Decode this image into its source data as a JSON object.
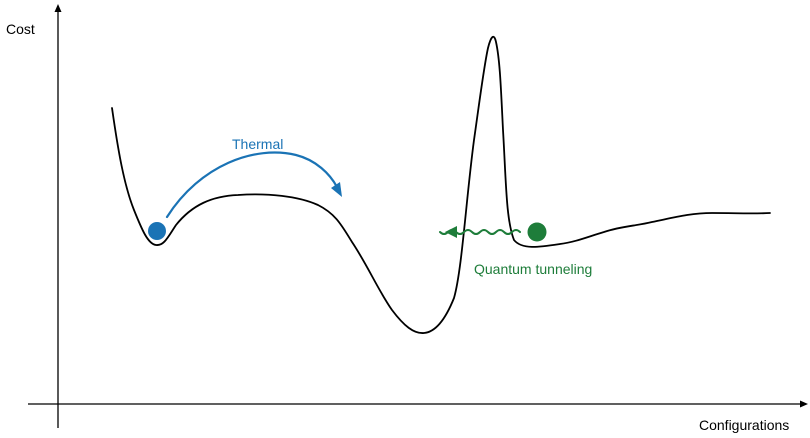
{
  "axes": {
    "y_label": "Cost",
    "x_label": "Configurations"
  },
  "annotations": {
    "thermal": {
      "label": "Thermal",
      "color": "#1a73b5"
    },
    "tunneling": {
      "label": "Quantum tunneling",
      "color": "#1e7d3a"
    }
  },
  "colors": {
    "curve": "#000000",
    "axis": "#000000"
  }
}
